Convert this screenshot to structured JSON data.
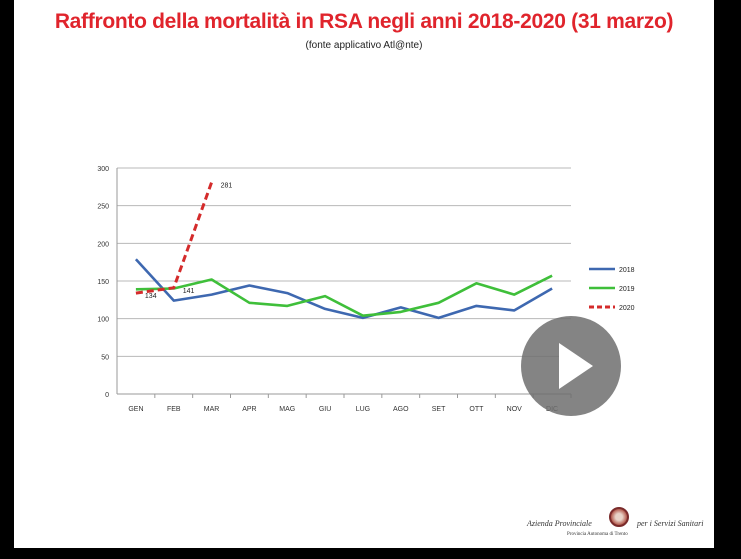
{
  "slide": {
    "title": "Raffronto della mortalità in RSA negli anni 2018-2020 (31 marzo)",
    "subtitle": "(fonte applicativo Atl@nte)"
  },
  "logo": {
    "line1": "Azienda Provinciale",
    "line2": "per i Servizi Sanitari",
    "line3": "Provincia Autonoma di Trento"
  },
  "chart_data": {
    "type": "line",
    "categories": [
      "GEN",
      "FEB",
      "MAR",
      "APR",
      "MAG",
      "GIU",
      "LUG",
      "AGO",
      "SET",
      "OTT",
      "NOV",
      "DIC"
    ],
    "ylim": [
      0,
      300
    ],
    "yticks": [
      0,
      50,
      100,
      150,
      200,
      250,
      300
    ],
    "grid": true,
    "legend_position": "right",
    "series": [
      {
        "name": "2018",
        "color": "#3e68b0",
        "dashed": false,
        "values": [
          179,
          124,
          132,
          144,
          134,
          113,
          101,
          115,
          101,
          117,
          111,
          140
        ]
      },
      {
        "name": "2019",
        "color": "#3fbf3a",
        "dashed": false,
        "values": [
          139,
          140,
          152,
          121,
          117,
          130,
          104,
          109,
          121,
          147,
          132,
          157
        ]
      },
      {
        "name": "2020",
        "color": "#d42b2b",
        "dashed": true,
        "values": [
          134,
          141,
          281,
          null,
          null,
          null,
          null,
          null,
          null,
          null,
          null,
          null
        ],
        "data_labels": [
          "134",
          "141",
          "281"
        ]
      }
    ]
  }
}
